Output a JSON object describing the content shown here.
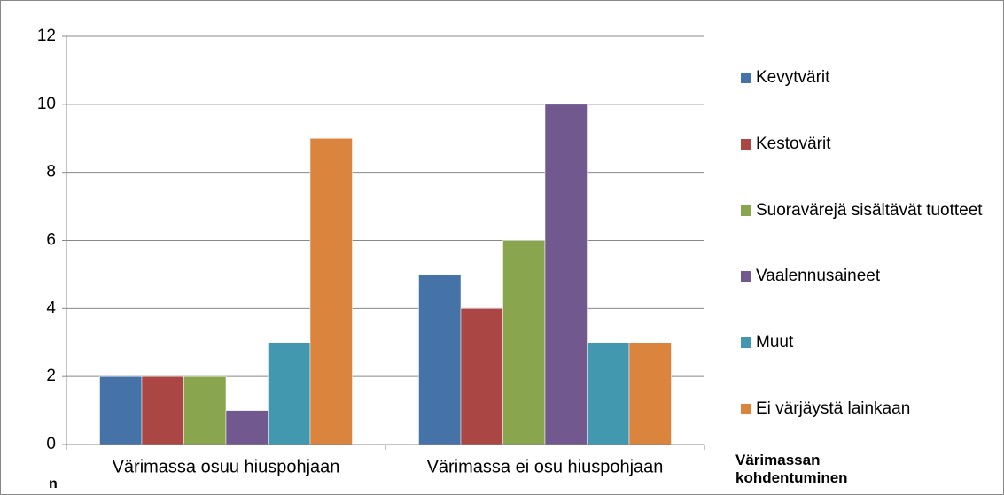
{
  "chart_data": {
    "type": "bar",
    "x_label": "Värimassan kohdentuminen",
    "y_label": "n",
    "categories": [
      "Värimassa osuu hiuspohjaan",
      "Värimassa ei osu hiuspohjaan"
    ],
    "series": [
      {
        "name": "Kevytvärit",
        "color": "#4572a7",
        "values": [
          2,
          5
        ]
      },
      {
        "name": "Kestovärit",
        "color": "#aa4643",
        "values": [
          2,
          4
        ]
      },
      {
        "name": "Suoravärejä sisältävät tuotteet",
        "color": "#89a54e",
        "values": [
          2,
          6
        ]
      },
      {
        "name": "Vaalennusaineet",
        "color": "#71588f",
        "values": [
          1,
          10
        ]
      },
      {
        "name": "Muut",
        "color": "#4198af",
        "values": [
          3,
          3
        ]
      },
      {
        "name": "Ei värjäystä lainkaan",
        "color": "#db843d",
        "values": [
          9,
          3
        ]
      }
    ],
    "ylim": [
      0,
      12
    ],
    "yticks": [
      0,
      2,
      4,
      6,
      8,
      10,
      12
    ],
    "grid": true,
    "legend": "right"
  }
}
